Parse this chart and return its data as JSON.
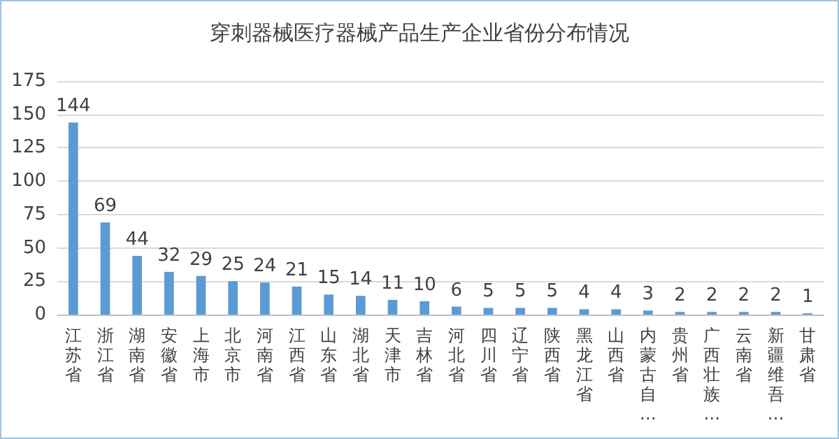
{
  "chart_data": {
    "type": "bar",
    "title": "穿刺器械医疗器械产品生产企业省份分布情况",
    "categories": [
      "江苏省",
      "浙江省",
      "湖南省",
      "安徽省",
      "上海市",
      "北京市",
      "河南省",
      "江西省",
      "山东省",
      "湖北省",
      "天津市",
      "吉林省",
      "河北省",
      "四川省",
      "辽宁省",
      "陕西省",
      "黑龙江省",
      "山西省",
      "内蒙古自…",
      "贵州省",
      "广西壮族…",
      "云南省",
      "新疆维吾…",
      "甘肃省"
    ],
    "values": [
      144,
      69,
      44,
      32,
      29,
      25,
      24,
      21,
      15,
      14,
      11,
      10,
      6,
      5,
      5,
      5,
      4,
      4,
      3,
      2,
      2,
      2,
      2,
      1
    ],
    "color": "#5b9bd5",
    "ylim": [
      0,
      175
    ],
    "yticks": [
      0,
      25,
      50,
      75,
      100,
      125,
      150,
      175
    ],
    "grid": "y",
    "data_labels": true
  }
}
